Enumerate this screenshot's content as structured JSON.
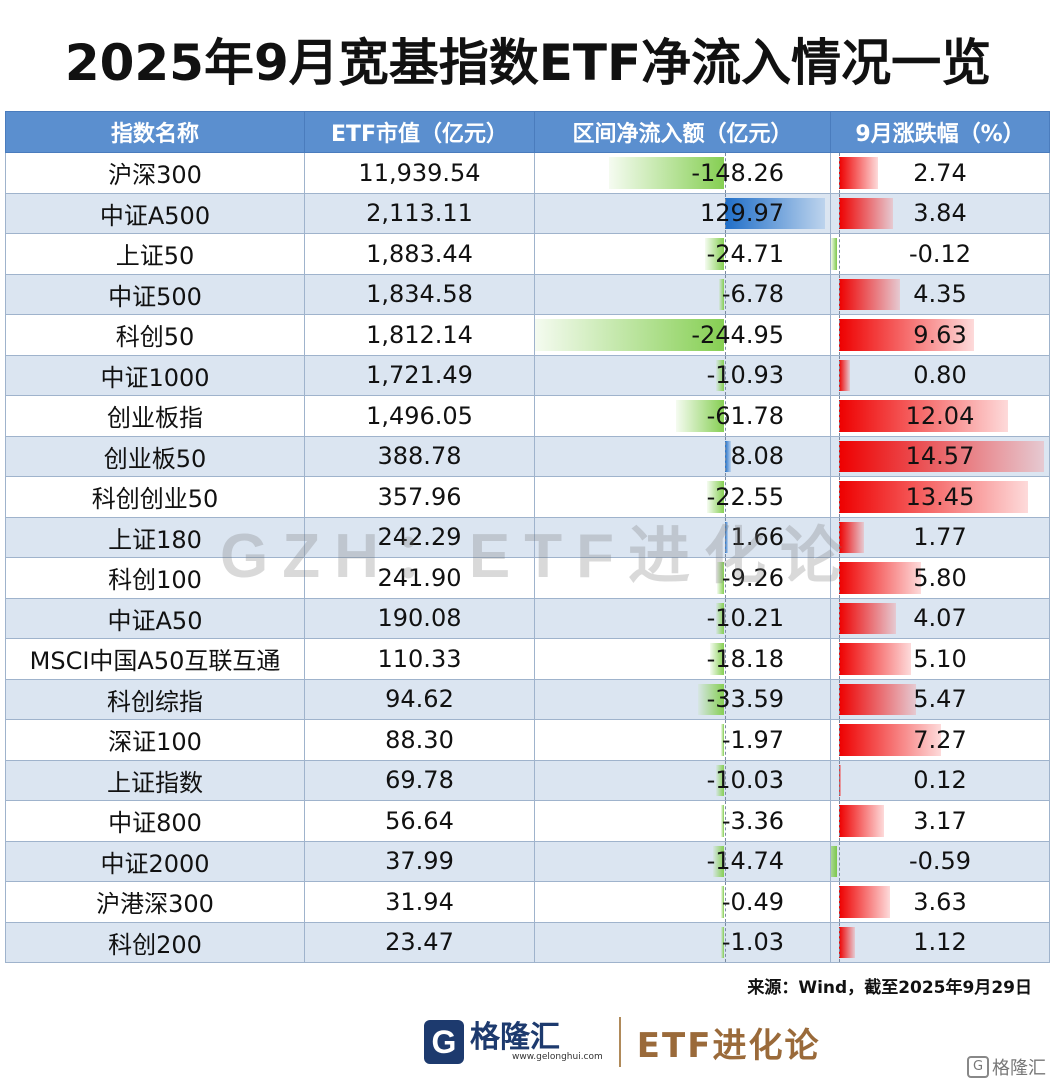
{
  "title": "2025年9月宽基指数ETF净流入情况一览",
  "headers": [
    "指数名称",
    "ETF市值（亿元）",
    "区间净流入额（亿元）",
    "9月涨跌幅（%）"
  ],
  "rows": [
    {
      "name": "沪深300",
      "mcap": "11,939.54",
      "flow": "-148.26",
      "chg": "2.74"
    },
    {
      "name": "中证A500",
      "mcap": "2,113.11",
      "flow": "129.97",
      "chg": "3.84"
    },
    {
      "name": "上证50",
      "mcap": "1,883.44",
      "flow": "-24.71",
      "chg": "-0.12"
    },
    {
      "name": "中证500",
      "mcap": "1,834.58",
      "flow": "-6.78",
      "chg": "4.35"
    },
    {
      "name": "科创50",
      "mcap": "1,812.14",
      "flow": "-244.95",
      "chg": "9.63"
    },
    {
      "name": "中证1000",
      "mcap": "1,721.49",
      "flow": "-10.93",
      "chg": "0.80"
    },
    {
      "name": "创业板指",
      "mcap": "1,496.05",
      "flow": "-61.78",
      "chg": "12.04"
    },
    {
      "name": "创业板50",
      "mcap": "388.78",
      "flow": "8.08",
      "chg": "14.57"
    },
    {
      "name": "科创创业50",
      "mcap": "357.96",
      "flow": "-22.55",
      "chg": "13.45"
    },
    {
      "name": "上证180",
      "mcap": "242.29",
      "flow": "1.66",
      "chg": "1.77"
    },
    {
      "name": "科创100",
      "mcap": "241.90",
      "flow": "-9.26",
      "chg": "5.80"
    },
    {
      "name": "中证A50",
      "mcap": "190.08",
      "flow": "-10.21",
      "chg": "4.07"
    },
    {
      "name": "MSCI中国A50互联互通",
      "mcap": "110.33",
      "flow": "-18.18",
      "chg": "5.10"
    },
    {
      "name": "科创综指",
      "mcap": "94.62",
      "flow": "-33.59",
      "chg": "5.47"
    },
    {
      "name": "深证100",
      "mcap": "88.30",
      "flow": "-1.97",
      "chg": "7.27"
    },
    {
      "name": "上证指数",
      "mcap": "69.78",
      "flow": "-10.03",
      "chg": "0.12"
    },
    {
      "name": "中证800",
      "mcap": "56.64",
      "flow": "-3.36",
      "chg": "3.17"
    },
    {
      "name": "中证2000",
      "mcap": "37.99",
      "flow": "-14.74",
      "chg": "-0.59"
    },
    {
      "name": "沪港深300",
      "mcap": "31.94",
      "flow": "-0.49",
      "chg": "3.63"
    },
    {
      "name": "科创200",
      "mcap": "23.47",
      "flow": "-1.03",
      "chg": "1.12"
    }
  ],
  "watermark": "GZH：ETF进化论",
  "source": "来源：Wind，截至2025年9月29日",
  "footer": {
    "logo_letter": "G",
    "logo_cn": "格隆汇",
    "logo_url": "www.gelonghui.com",
    "etf_brand": "ETF进化论",
    "corner_letter": "G",
    "corner_text": "格隆汇"
  },
  "colors": {
    "header_bg": "#5b8fcf",
    "alt_row_bg": "#dbe5f1",
    "positive_change": "#ee0000",
    "negative_flow": "#86cf53",
    "positive_flow": "#1f6ec8"
  }
}
